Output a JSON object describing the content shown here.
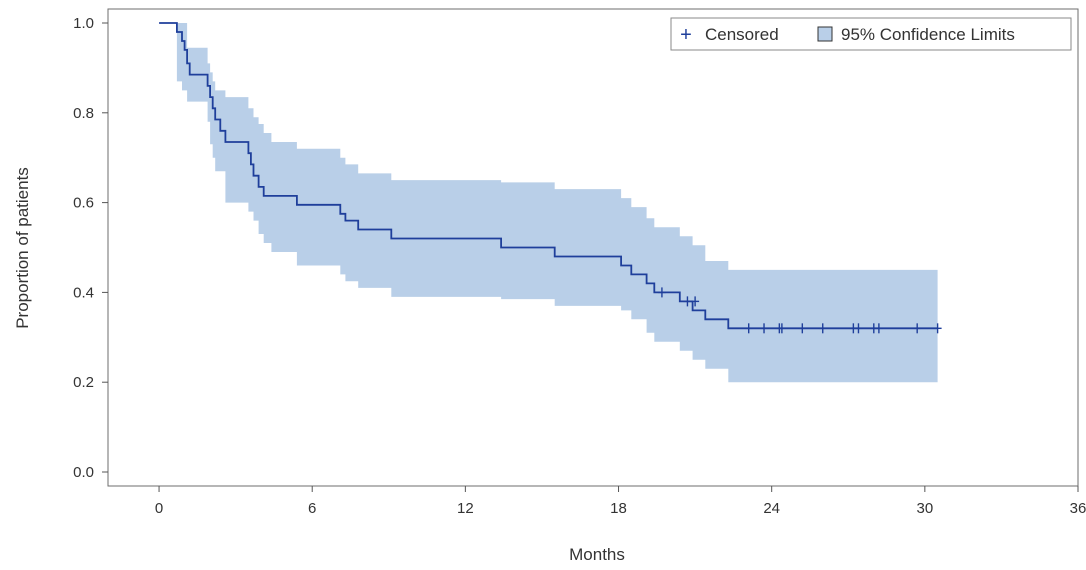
{
  "chart_data": {
    "type": "line",
    "subtype": "kaplan-meier-step",
    "xlabel": "Months",
    "ylabel": "Proportion of patients",
    "xlim": [
      -2,
      36
    ],
    "ylim": [
      0.0,
      1.0
    ],
    "xticks": [
      0,
      6,
      12,
      18,
      24,
      30,
      36
    ],
    "yticks": [
      0.0,
      0.2,
      0.4,
      0.6,
      0.8,
      1.0
    ],
    "ytick_labels": [
      "0.0",
      "0.2",
      "0.4",
      "0.6",
      "0.8",
      "1.0"
    ],
    "grid": false,
    "legend": {
      "placement": "top-right",
      "items": [
        {
          "symbol": "+",
          "label": "Censored"
        },
        {
          "symbol": "band",
          "label": "95% Confidence Limits"
        }
      ]
    },
    "colors": {
      "line": "#1f3f9b",
      "band": "#b9cfe8",
      "axis": "#555555",
      "text": "#333333"
    },
    "survival": {
      "x": [
        0,
        0.7,
        0.9,
        1.0,
        1.1,
        1.2,
        1.9,
        2.0,
        2.1,
        2.2,
        2.4,
        2.6,
        2.8,
        3.5,
        3.6,
        3.7,
        3.9,
        4.1,
        4.4,
        5.4,
        7.1,
        7.3,
        7.8,
        9.1,
        13.4,
        15.5,
        18.1,
        18.5,
        19.1,
        19.4,
        20.4,
        20.9,
        21.4,
        22.3,
        30.5
      ],
      "y": [
        1.0,
        0.98,
        0.96,
        0.94,
        0.91,
        0.885,
        0.86,
        0.835,
        0.81,
        0.785,
        0.76,
        0.735,
        0.735,
        0.71,
        0.685,
        0.66,
        0.635,
        0.615,
        0.615,
        0.595,
        0.575,
        0.56,
        0.54,
        0.52,
        0.5,
        0.48,
        0.46,
        0.44,
        0.42,
        0.4,
        0.38,
        0.36,
        0.34,
        0.32,
        0.32
      ]
    },
    "confidence_band": {
      "x": [
        0.7,
        0.9,
        1.1,
        1.9,
        2.0,
        2.1,
        2.2,
        2.6,
        3.5,
        3.7,
        3.9,
        4.1,
        4.4,
        5.4,
        7.1,
        7.3,
        7.8,
        9.1,
        13.4,
        15.5,
        18.1,
        18.5,
        19.1,
        19.4,
        20.4,
        20.9,
        21.4,
        22.3
      ],
      "upper": [
        1.0,
        1.0,
        0.945,
        0.91,
        0.89,
        0.87,
        0.85,
        0.835,
        0.81,
        0.79,
        0.775,
        0.755,
        0.735,
        0.72,
        0.7,
        0.685,
        0.665,
        0.65,
        0.645,
        0.63,
        0.61,
        0.59,
        0.565,
        0.545,
        0.525,
        0.505,
        0.47,
        0.45
      ],
      "lower": [
        0.87,
        0.85,
        0.825,
        0.78,
        0.73,
        0.7,
        0.67,
        0.6,
        0.58,
        0.56,
        0.53,
        0.51,
        0.49,
        0.46,
        0.44,
        0.425,
        0.41,
        0.39,
        0.385,
        0.37,
        0.36,
        0.34,
        0.31,
        0.29,
        0.27,
        0.25,
        0.23,
        0.2
      ],
      "end_x": 30.5
    },
    "censored": {
      "x": [
        19.7,
        20.7,
        21.0,
        23.1,
        23.7,
        24.3,
        24.4,
        25.2,
        26.0,
        27.2,
        27.4,
        28.0,
        28.2,
        29.7,
        30.5
      ],
      "y": [
        0.4,
        0.38,
        0.38,
        0.32,
        0.32,
        0.32,
        0.32,
        0.32,
        0.32,
        0.32,
        0.32,
        0.32,
        0.32,
        0.32,
        0.32
      ]
    }
  }
}
